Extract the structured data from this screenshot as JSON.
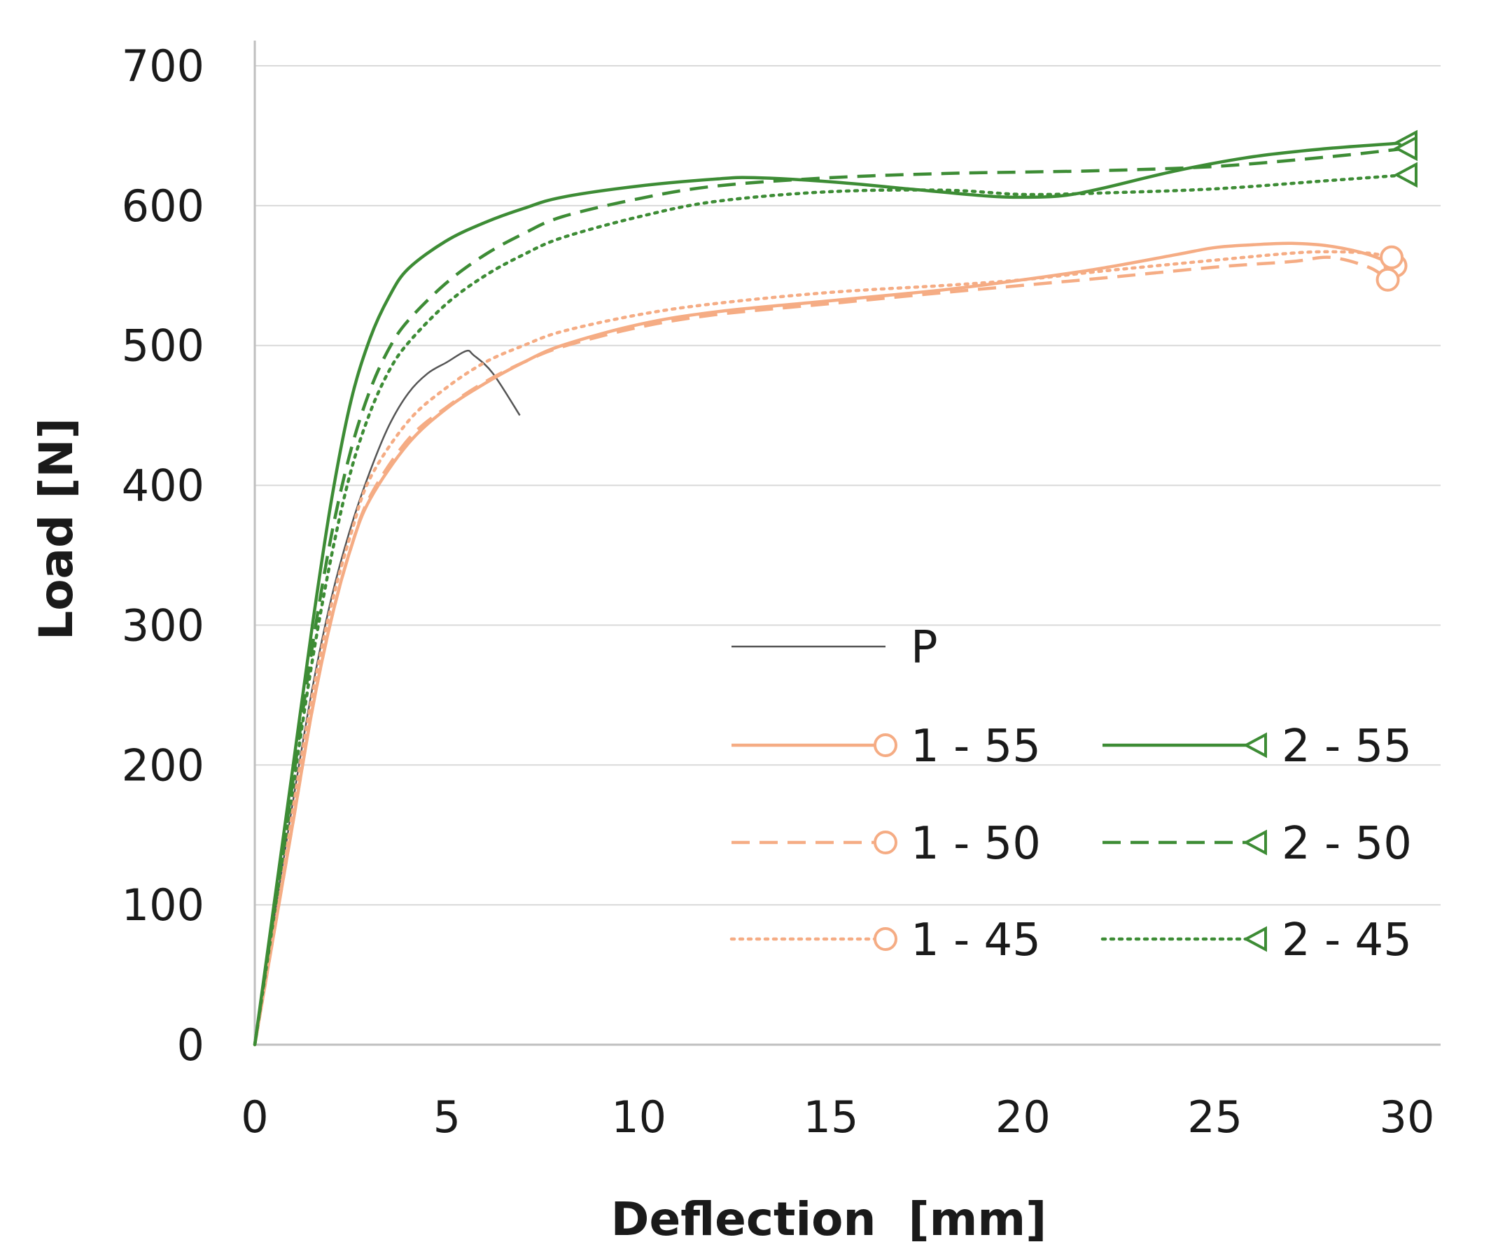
{
  "chart_data": {
    "type": "line",
    "title": "",
    "xlabel": "Deflection  [mm]",
    "ylabel": "Load [N]",
    "xlim": [
      0,
      30
    ],
    "ylim": [
      0,
      700
    ],
    "xticks": [
      0,
      5,
      10,
      15,
      20,
      25,
      30
    ],
    "yticks": [
      0,
      100,
      200,
      300,
      400,
      500,
      600,
      700
    ],
    "grid": "horizontal",
    "legend_position": "bottom-right",
    "colors": {
      "orange": "#f5ac84",
      "green": "#3d8c35",
      "gray": "#555555"
    },
    "series": [
      {
        "name": "P",
        "color": "#555555",
        "dash": "solid",
        "marker": "none",
        "x": [
          0,
          0.5,
          1,
          1.5,
          2,
          2.5,
          3,
          3.5,
          4,
          4.5,
          5,
          5.5,
          5.7,
          6.2,
          6.9
        ],
        "y": [
          0,
          90,
          175,
          255,
          320,
          370,
          410,
          443,
          466,
          480,
          488,
          496,
          493,
          480,
          450
        ]
      },
      {
        "name": "1 - 55",
        "color": "#f5ac84",
        "dash": "solid",
        "marker": "circle",
        "x": [
          0,
          0.5,
          1,
          1.5,
          2,
          2.5,
          3,
          4,
          5,
          6,
          7,
          8,
          10,
          12,
          15,
          18,
          20,
          22,
          24,
          25,
          26,
          27,
          28,
          29,
          29.7
        ],
        "y": [
          0,
          80,
          160,
          240,
          305,
          355,
          390,
          430,
          455,
          473,
          488,
          500,
          515,
          524,
          532,
          540,
          547,
          555,
          565,
          570,
          572,
          573,
          571,
          565,
          557
        ]
      },
      {
        "name": "1 - 50",
        "color": "#f5ac84",
        "dash": "dashed",
        "marker": "circle",
        "x": [
          0,
          0.5,
          1,
          1.5,
          2,
          2.5,
          3,
          4,
          5,
          6,
          7,
          8,
          10,
          12,
          15,
          18,
          20,
          22,
          25,
          27,
          28,
          29,
          29.5
        ],
        "y": [
          0,
          80,
          160,
          240,
          305,
          355,
          392,
          433,
          456,
          474,
          488,
          499,
          513,
          522,
          530,
          538,
          543,
          548,
          556,
          560,
          563,
          556,
          547
        ]
      },
      {
        "name": "1 - 45",
        "color": "#f5ac84",
        "dash": "dotted",
        "marker": "circle",
        "x": [
          0,
          0.5,
          1,
          1.5,
          2,
          2.5,
          3,
          4,
          5,
          6,
          7,
          8,
          10,
          12,
          15,
          18,
          20,
          22,
          25,
          27,
          28,
          29,
          29.6
        ],
        "y": [
          0,
          85,
          170,
          250,
          315,
          365,
          405,
          446,
          470,
          488,
          500,
          510,
          522,
          530,
          538,
          543,
          547,
          553,
          561,
          566,
          567,
          566,
          563
        ]
      },
      {
        "name": "2 - 55",
        "color": "#3d8c35",
        "dash": "solid",
        "marker": "triangle",
        "x": [
          0,
          0.5,
          1,
          1.5,
          2,
          2.5,
          3,
          3.5,
          4,
          5,
          6,
          7,
          8,
          10,
          12,
          13,
          15,
          17,
          19,
          20,
          21,
          22,
          24,
          26,
          28,
          30
        ],
        "y": [
          0,
          100,
          200,
          300,
          390,
          460,
          505,
          535,
          555,
          575,
          588,
          598,
          606,
          614,
          619,
          620,
          617,
          612,
          607,
          606,
          607,
          612,
          625,
          635,
          641,
          645
        ]
      },
      {
        "name": "2 - 50",
        "color": "#3d8c35",
        "dash": "dashed",
        "marker": "triangle",
        "x": [
          0,
          0.5,
          1,
          1.5,
          2,
          2.5,
          3,
          3.5,
          4,
          5,
          6,
          7,
          8,
          10,
          12,
          15,
          18,
          20,
          22,
          25,
          28,
          30
        ],
        "y": [
          0,
          95,
          190,
          285,
          365,
          425,
          468,
          498,
          518,
          545,
          565,
          580,
          592,
          605,
          614,
          620,
          623,
          624,
          625,
          628,
          635,
          641
        ]
      },
      {
        "name": "2 - 45",
        "color": "#3d8c35",
        "dash": "dotted",
        "marker": "triangle",
        "x": [
          0,
          0.5,
          1,
          1.5,
          2,
          2.5,
          3,
          3.5,
          4,
          5,
          6,
          7,
          8,
          10,
          12,
          15,
          18,
          20,
          22,
          25,
          28,
          30
        ],
        "y": [
          0,
          92,
          185,
          275,
          350,
          410,
          452,
          482,
          502,
          530,
          550,
          565,
          577,
          592,
          603,
          610,
          611,
          608,
          609,
          612,
          618,
          622
        ]
      }
    ],
    "legend": [
      {
        "label": "P",
        "series": 0
      },
      {
        "label": "1 - 55",
        "series": 1
      },
      {
        "label": "2 - 55",
        "series": 4
      },
      {
        "label": "1 - 50",
        "series": 2
      },
      {
        "label": "2 - 50",
        "series": 5
      },
      {
        "label": "1 - 45",
        "series": 3
      },
      {
        "label": "2 - 45",
        "series": 6
      }
    ]
  }
}
